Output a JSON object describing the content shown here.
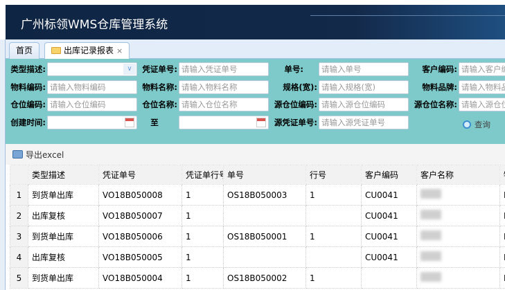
{
  "app": {
    "title": "广州标领WMS仓库管理系统"
  },
  "tabs": [
    {
      "label": "首页"
    },
    {
      "label": "出库记录报表",
      "close": "×"
    }
  ],
  "form": {
    "type_desc": {
      "label": "类型描述:",
      "value": ""
    },
    "voucher_no": {
      "label": "凭证单号:",
      "placeholder": "请输入凭证单号"
    },
    "order_no": {
      "label": "单号:",
      "placeholder": "请输入单号"
    },
    "customer_code": {
      "label": "客户编码:",
      "placeholder": "请输入客户编"
    },
    "material_code": {
      "label": "物料编码:",
      "placeholder": "请输入物料编码"
    },
    "material_name": {
      "label": "物料名称:",
      "placeholder": "请输入物料名称"
    },
    "spec": {
      "label": "规格(宽):",
      "placeholder": "请输入规格(宽)"
    },
    "brand": {
      "label": "物料品牌:",
      "placeholder": "请输入物料品"
    },
    "loc_code": {
      "label": "仓位编码:",
      "placeholder": "请输入仓位编码"
    },
    "loc_name": {
      "label": "仓位名称:",
      "placeholder": "请输入仓位名称"
    },
    "src_loc_code": {
      "label": "源仓位编码:",
      "placeholder": "请输入源仓位编码"
    },
    "src_loc_name": {
      "label": "源仓位名称:",
      "placeholder": "请输入源仓位"
    },
    "created": {
      "label": "创建时间:",
      "to": "至"
    },
    "src_voucher": {
      "label": "源凭证单号:",
      "placeholder": "请输入源凭证单号"
    },
    "search_label": "查询"
  },
  "toolbar": {
    "export_label": "导出excel"
  },
  "table": {
    "columns": [
      "",
      "类型描述",
      "凭证单号",
      "凭证单行号",
      "单号",
      "行号",
      "客户编码",
      "客户名称",
      "物"
    ],
    "rows": [
      [
        "1",
        "到货单出库",
        "VO18B050008",
        "1",
        "OS18B050003",
        "1",
        "CU0041",
        "",
        "E"
      ],
      [
        "2",
        "出库复核",
        "VO18B050007",
        "1",
        "",
        "",
        "CU0041",
        "",
        "E"
      ],
      [
        "3",
        "到货单出库",
        "VO18B050006",
        "1",
        "OS18B050001",
        "1",
        "CU0041",
        "",
        "E"
      ],
      [
        "4",
        "出库复核",
        "VO18B050005",
        "1",
        "",
        "",
        "CU0041",
        "",
        "E"
      ],
      [
        "5",
        "到货单出库",
        "VO18B050004",
        "1",
        "OS18B050002",
        "1",
        "",
        "",
        "E"
      ]
    ]
  }
}
